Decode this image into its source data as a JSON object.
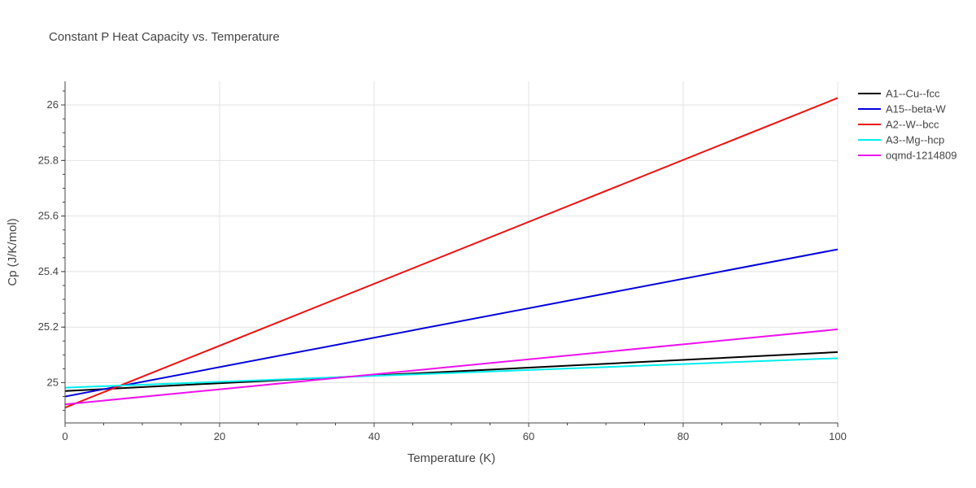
{
  "chart_data": {
    "type": "line",
    "title": "Constant P Heat Capacity vs. Temperature",
    "xlabel": "Temperature (K)",
    "ylabel": "Cp (J/K/mol)",
    "xlim": [
      0,
      100
    ],
    "ylim": [
      24.855,
      26.085
    ],
    "x_ticks": [
      0,
      20,
      40,
      60,
      80,
      100
    ],
    "x_tick_labels": [
      "0",
      "20",
      "40",
      "60",
      "80",
      "100"
    ],
    "y_ticks": [
      25,
      25.2,
      25.4,
      25.6,
      25.8,
      26
    ],
    "y_tick_labels": [
      "25",
      "25.2",
      "25.4",
      "25.6",
      "25.8",
      "26"
    ],
    "grid": true,
    "legend_position": "right",
    "series": [
      {
        "name": "A1--Cu--fcc",
        "color": "#000000",
        "x": [
          0,
          100
        ],
        "y": [
          24.97,
          25.11
        ]
      },
      {
        "name": "A15--beta-W",
        "color": "#0000dd",
        "x": [
          0,
          100
        ],
        "y": [
          24.95,
          25.48
        ]
      },
      {
        "name": "A2--W--bcc",
        "color": "#ee1111",
        "x": [
          0,
          100
        ],
        "y": [
          24.91,
          26.025
        ]
      },
      {
        "name": "A3--Mg--hcp",
        "color": "#00eeee",
        "x": [
          0,
          100
        ],
        "y": [
          24.982,
          25.088
        ]
      },
      {
        "name": "oqmd-1214809",
        "color": "#ee11ee",
        "x": [
          0,
          100
        ],
        "y": [
          24.922,
          25.192
        ]
      }
    ]
  }
}
